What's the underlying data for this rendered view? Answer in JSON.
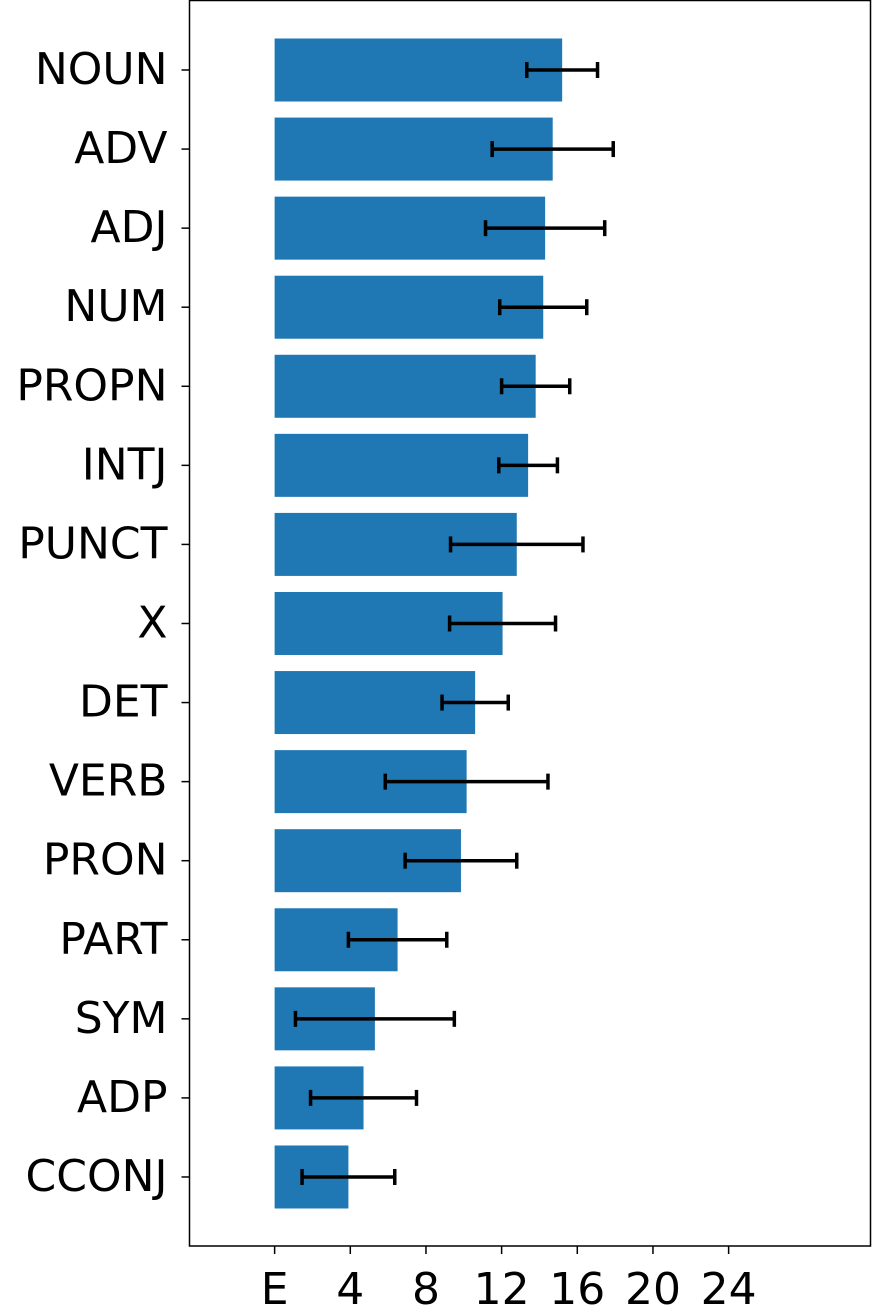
{
  "chart_data": {
    "type": "barh",
    "categories": [
      "NOUN",
      "ADV",
      "ADJ",
      "NUM",
      "PROPN",
      "INTJ",
      "PUNCT",
      "X",
      "DET",
      "VERB",
      "PRON",
      "PART",
      "SYM",
      "ADP",
      "CCONJ"
    ],
    "values": [
      15.2,
      14.7,
      14.3,
      14.2,
      13.8,
      13.4,
      12.8,
      12.05,
      10.6,
      10.15,
      9.85,
      6.5,
      5.3,
      4.7,
      3.9
    ],
    "errors": [
      1.87,
      3.2,
      3.15,
      2.3,
      1.8,
      1.55,
      3.5,
      2.8,
      1.75,
      4.3,
      2.95,
      2.6,
      4.2,
      2.8,
      2.45
    ],
    "color": "#1f77b4",
    "xlim": [
      -4.5,
      31.5
    ],
    "xticks": [
      {
        "value": 0,
        "label": "E"
      },
      4,
      8,
      12,
      16,
      20,
      24
    ]
  }
}
